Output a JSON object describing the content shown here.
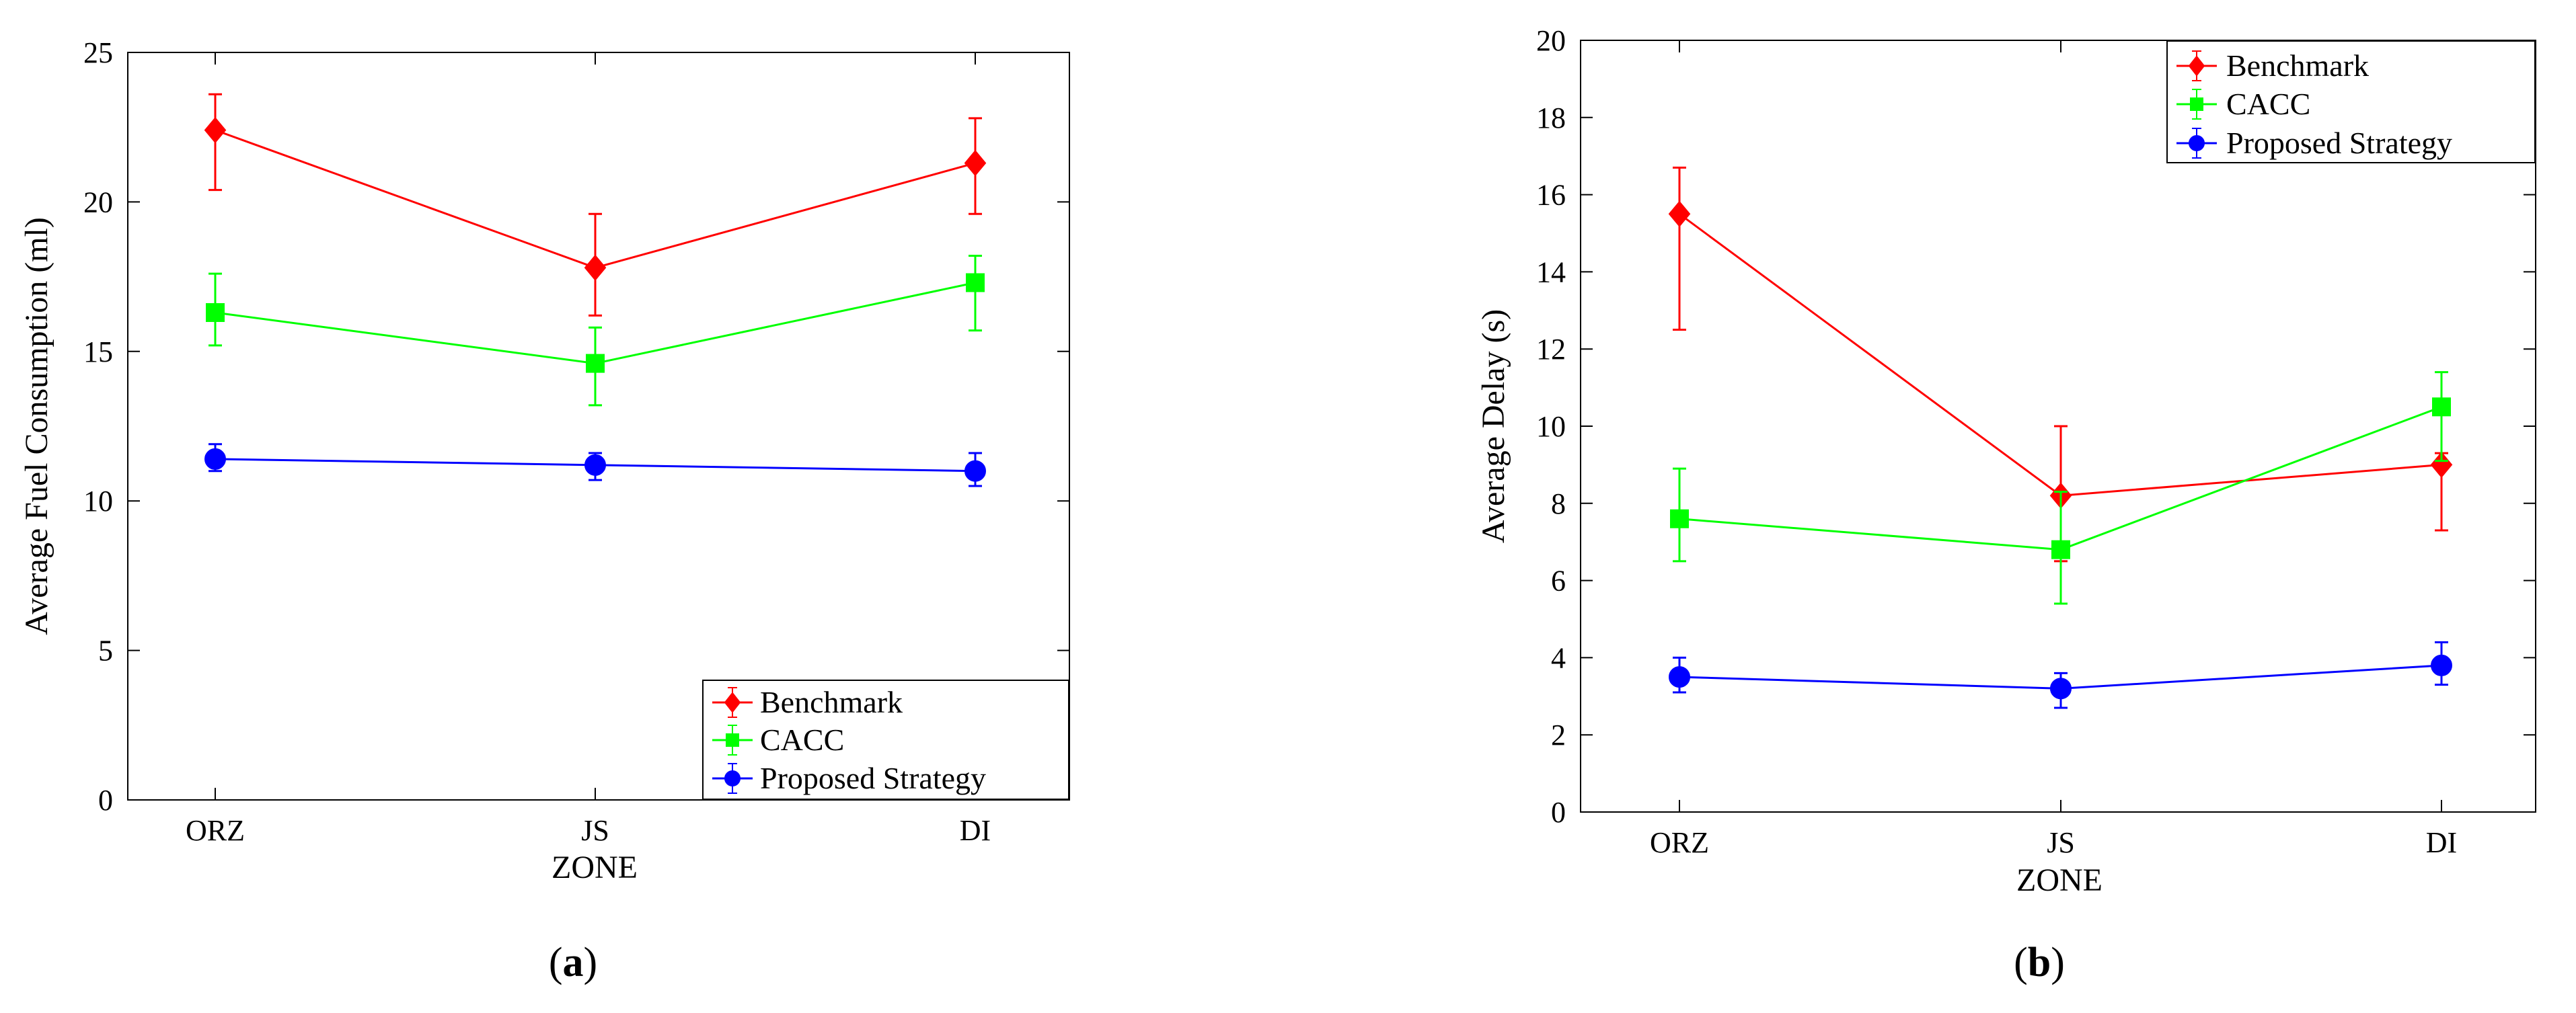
{
  "chart_data": [
    {
      "type": "line",
      "panel_label": "a",
      "title": "",
      "xlabel": "ZONE",
      "ylabel": "Average Fuel Consumption (ml)",
      "categories": [
        "ORZ",
        "JS",
        "DI"
      ],
      "ylim": [
        0,
        25
      ],
      "yticks": [
        "0",
        "5",
        "10",
        "15",
        "20",
        "25"
      ],
      "legend_position": "bottom-right",
      "series": [
        {
          "name": "Benchmark",
          "color": "#ff0000",
          "marker": "diamond",
          "values": [
            22.4,
            17.8,
            21.3
          ],
          "err_low": [
            20.4,
            16.2,
            19.6
          ],
          "err_high": [
            23.6,
            19.6,
            22.8
          ]
        },
        {
          "name": "CACC",
          "color": "#00ff00",
          "marker": "square",
          "values": [
            16.3,
            14.6,
            17.3
          ],
          "err_low": [
            15.2,
            13.2,
            15.7
          ],
          "err_high": [
            17.6,
            15.8,
            18.2
          ]
        },
        {
          "name": "Proposed Strategy",
          "color": "#0000ff",
          "marker": "circle",
          "values": [
            11.4,
            11.2,
            11.0
          ],
          "err_low": [
            11.0,
            10.7,
            10.5
          ],
          "err_high": [
            11.9,
            11.6,
            11.6
          ]
        }
      ]
    },
    {
      "type": "line",
      "panel_label": "b",
      "title": "",
      "xlabel": "ZONE",
      "ylabel": "Average Delay (s)",
      "categories": [
        "ORZ",
        "JS",
        "DI"
      ],
      "ylim": [
        0,
        20
      ],
      "yticks": [
        "0",
        "2",
        "4",
        "6",
        "8",
        "10",
        "12",
        "14",
        "16",
        "18",
        "20"
      ],
      "legend_position": "top-right",
      "series": [
        {
          "name": "Benchmark",
          "color": "#ff0000",
          "marker": "diamond",
          "values": [
            15.5,
            8.2,
            9.0
          ],
          "err_low": [
            12.5,
            6.5,
            7.3
          ],
          "err_high": [
            16.7,
            10.0,
            9.3
          ]
        },
        {
          "name": "CACC",
          "color": "#00ff00",
          "marker": "square",
          "values": [
            7.6,
            6.8,
            10.5
          ],
          "err_low": [
            6.5,
            5.4,
            9.1
          ],
          "err_high": [
            8.9,
            8.3,
            11.4
          ]
        },
        {
          "name": "Proposed Strategy",
          "color": "#0000ff",
          "marker": "circle",
          "values": [
            3.5,
            3.2,
            3.8
          ],
          "err_low": [
            3.1,
            2.7,
            3.3
          ],
          "err_high": [
            4.0,
            3.6,
            4.4
          ]
        }
      ]
    }
  ]
}
